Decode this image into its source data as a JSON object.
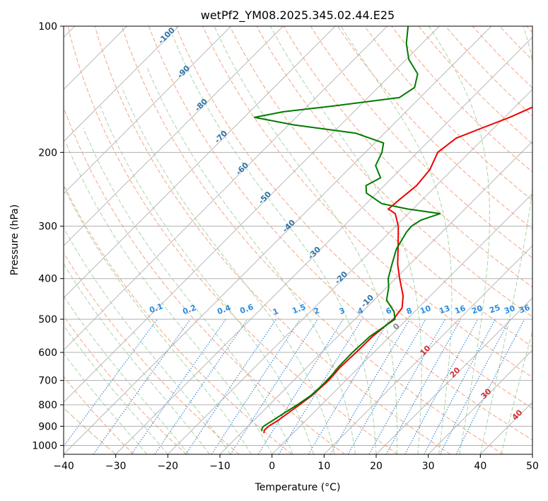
{
  "chart_data": {
    "type": "line",
    "title": "wetPf2_YM08.2025.345.02.44.E25",
    "xlabel": "Temperature (°C)",
    "ylabel": "Pressure (hPa)",
    "xlim": [
      -40,
      50
    ],
    "ylim": [
      1050,
      100
    ],
    "y_scale": "log",
    "skew": "skew-T",
    "grid": true,
    "x_ticks": [
      -40,
      -30,
      -20,
      -10,
      0,
      10,
      20,
      30,
      40,
      50
    ],
    "y_ticks": [
      100,
      200,
      300,
      400,
      500,
      600,
      700,
      800,
      900,
      1000
    ],
    "series": [
      {
        "color": "#ee0000",
        "points": [
          {
            "p": 935,
            "t": -5.6
          },
          {
            "p": 920,
            "t": -6.1
          },
          {
            "p": 900,
            "t": -6.0
          },
          {
            "p": 870,
            "t": -5.3
          },
          {
            "p": 830,
            "t": -4.7
          },
          {
            "p": 800,
            "t": -4.2
          },
          {
            "p": 760,
            "t": -3.6
          },
          {
            "p": 700,
            "t": -3.3
          },
          {
            "p": 650,
            "t": -3.6
          },
          {
            "p": 600,
            "t": -3.4
          },
          {
            "p": 550,
            "t": -3.3
          },
          {
            "p": 500,
            "t": -2.6
          },
          {
            "p": 470,
            "t": -3.1
          },
          {
            "p": 440,
            "t": -5.2
          },
          {
            "p": 400,
            "t": -9.2
          },
          {
            "p": 370,
            "t": -12.3
          },
          {
            "p": 330,
            "t": -16.2
          },
          {
            "p": 300,
            "t": -19.5
          },
          {
            "p": 280,
            "t": -22.5
          },
          {
            "p": 273,
            "t": -24.7
          },
          {
            "p": 260,
            "t": -24.4
          },
          {
            "p": 240,
            "t": -23.8
          },
          {
            "p": 220,
            "t": -24.3
          },
          {
            "p": 200,
            "t": -26.1
          },
          {
            "p": 185,
            "t": -25.3
          },
          {
            "p": 175,
            "t": -22.3
          },
          {
            "p": 165,
            "t": -19.0
          },
          {
            "p": 155,
            "t": -16.3
          },
          {
            "p": 145,
            "t": -17.8
          },
          {
            "p": 132,
            "t": -21.2
          },
          {
            "p": 120,
            "t": -23.6
          },
          {
            "p": 110,
            "t": -27.0
          },
          {
            "p": 100,
            "t": -30.5
          }
        ]
      },
      {
        "color": "#007a00",
        "points": [
          {
            "p": 925,
            "t": -6.4
          },
          {
            "p": 910,
            "t": -6.9
          },
          {
            "p": 900,
            "t": -7.0
          },
          {
            "p": 870,
            "t": -6.3
          },
          {
            "p": 830,
            "t": -5.4
          },
          {
            "p": 800,
            "t": -4.6
          },
          {
            "p": 760,
            "t": -3.8
          },
          {
            "p": 720,
            "t": -3.6
          },
          {
            "p": 680,
            "t": -3.7
          },
          {
            "p": 650,
            "t": -4.0
          },
          {
            "p": 600,
            "t": -4.1
          },
          {
            "p": 550,
            "t": -3.8
          },
          {
            "p": 500,
            "t": -2.3
          },
          {
            "p": 480,
            "t": -3.9
          },
          {
            "p": 450,
            "t": -7.6
          },
          {
            "p": 420,
            "t": -9.6
          },
          {
            "p": 400,
            "t": -11.4
          },
          {
            "p": 370,
            "t": -13.4
          },
          {
            "p": 340,
            "t": -15.5
          },
          {
            "p": 310,
            "t": -16.8
          },
          {
            "p": 300,
            "t": -17.0
          },
          {
            "p": 290,
            "t": -16.3
          },
          {
            "p": 280,
            "t": -13.9
          },
          {
            "p": 273,
            "t": -21.0
          },
          {
            "p": 265,
            "t": -27.0
          },
          {
            "p": 250,
            "t": -32.0
          },
          {
            "p": 240,
            "t": -33.5
          },
          {
            "p": 230,
            "t": -32.2
          },
          {
            "p": 215,
            "t": -35.5
          },
          {
            "p": 200,
            "t": -36.8
          },
          {
            "p": 190,
            "t": -38.3
          },
          {
            "p": 180,
            "t": -45.5
          },
          {
            "p": 172,
            "t": -59.0
          },
          {
            "p": 165,
            "t": -68.0
          },
          {
            "p": 160,
            "t": -63.5
          },
          {
            "p": 155,
            "t": -55.0
          },
          {
            "p": 148,
            "t": -44.0
          },
          {
            "p": 140,
            "t": -43.0
          },
          {
            "p": 130,
            "t": -45.0
          },
          {
            "p": 120,
            "t": -49.5
          },
          {
            "p": 110,
            "t": -53.0
          },
          {
            "p": 100,
            "t": -56.0
          }
        ]
      }
    ],
    "temperature_labels": [
      -100,
      -90,
      -80,
      -70,
      -60,
      -50,
      -40,
      -30,
      -20,
      -10
    ],
    "mixing_ratio_labels": [
      "0.1",
      "0.2",
      "0.4",
      "0.6",
      "1",
      "1.5",
      "2",
      "3",
      "4",
      "6",
      "8",
      "10",
      "13",
      "16",
      "20",
      "25",
      "30",
      "36"
    ],
    "theta_e_labels": [
      "0",
      "10",
      "20",
      "30",
      "40"
    ],
    "colors": {
      "isotherm": "#b8b8b8",
      "isobar": "#b0b0b0",
      "dry_adiabat": "#f4a582",
      "moist_adiabat": "#a8d5a8",
      "mixing_ratio": "#3a8ad8",
      "mixing_label": "#2a8de0",
      "temp_label": "#2f72a8",
      "theta_e_label_zero": "#888888",
      "theta_e_label": "#d03030",
      "special_curve": "#e0c8a8"
    }
  }
}
